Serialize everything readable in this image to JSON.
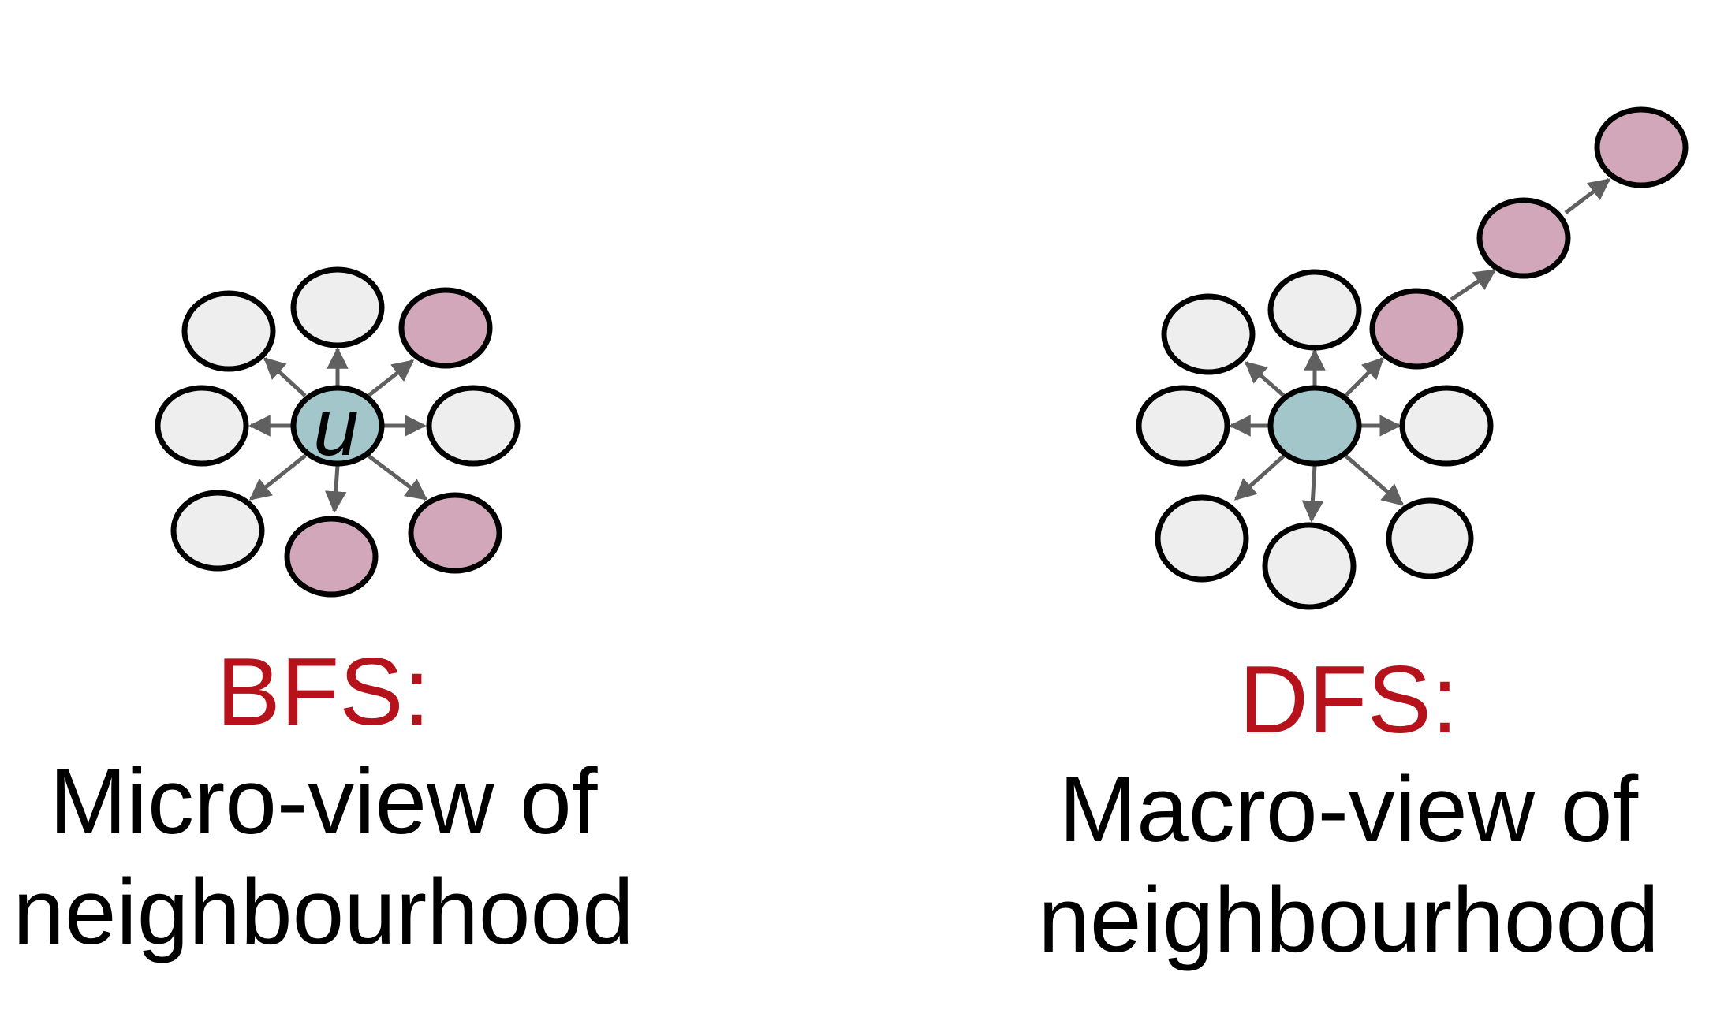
{
  "colors": {
    "background": "#ffffff",
    "node_fill_default": "#eeeeee",
    "node_fill_visited": "#d3a7ba",
    "node_fill_start": "#a3c6cb",
    "node_stroke": "#000000",
    "edge_color": "#606060",
    "heading_color": "#b5121b",
    "text_color": "#000000"
  },
  "bfs": {
    "heading": "BFS:",
    "line1": "Micro-view of",
    "line2": "neighbourhood",
    "start_node_label": "u"
  },
  "dfs": {
    "heading": "DFS:",
    "line1": "Macro-view of",
    "line2": "neighbourhood"
  }
}
